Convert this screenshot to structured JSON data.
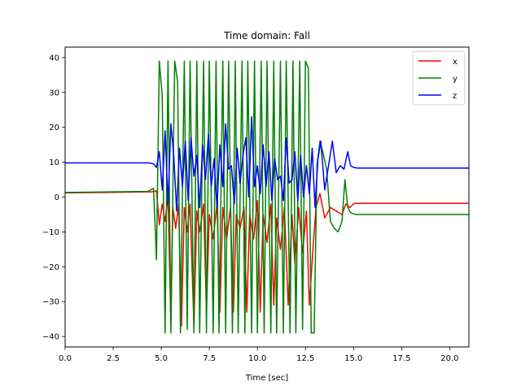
{
  "chart_data": {
    "type": "line",
    "title": "Time domain: Fall",
    "xlabel": "Time [sec]",
    "ylabel": "",
    "xlim": [
      0,
      21
    ],
    "ylim": [
      -43,
      43
    ],
    "xticks": [
      0.0,
      2.5,
      5.0,
      7.5,
      10.0,
      12.5,
      15.0,
      17.5,
      20.0
    ],
    "xtick_labels": [
      "0.0",
      "2.5",
      "5.0",
      "7.5",
      "10.0",
      "12.5",
      "15.0",
      "17.5",
      "20.0"
    ],
    "yticks": [
      40,
      30,
      20,
      10,
      0,
      -10,
      -20,
      -30,
      -40
    ],
    "ytick_labels": [
      "40",
      "30",
      "20",
      "10",
      "0",
      "−10",
      "−20",
      "−30",
      "−40"
    ],
    "grid": false,
    "legend_position": "top-right",
    "series": [
      {
        "name": "x",
        "color": "#ff0000",
        "x": [
          0,
          4.5,
          4.75,
          4.9,
          5.05,
          5.2,
          5.35,
          5.5,
          5.6,
          5.75,
          5.9,
          6.05,
          6.2,
          6.35,
          6.5,
          6.7,
          6.85,
          7.0,
          7.2,
          7.35,
          7.5,
          7.7,
          7.9,
          8.05,
          8.2,
          8.4,
          8.6,
          8.75,
          8.9,
          9.1,
          9.3,
          9.45,
          9.6,
          9.8,
          10.0,
          10.15,
          10.3,
          10.5,
          10.7,
          10.85,
          11.0,
          11.2,
          11.4,
          11.6,
          11.8,
          11.95,
          12.15,
          12.35,
          12.55,
          12.7,
          12.9,
          13.05,
          13.25,
          13.5,
          13.8,
          14.1,
          14.4,
          14.6,
          14.8,
          15.0,
          15.1,
          21
        ],
        "values": [
          1.2,
          1.5,
          1.8,
          -8,
          -2,
          -7,
          0,
          -36,
          -3,
          -9,
          -2,
          -37,
          -3,
          -10,
          -2,
          -37,
          -4,
          -10,
          -2,
          -33,
          -5,
          -12,
          -2,
          -33,
          -3,
          -12,
          -3,
          -33,
          -5,
          -9,
          -3,
          -33,
          -5,
          -12,
          -1,
          -33,
          -5,
          -13,
          -2,
          -31,
          -6,
          -15,
          -3,
          -31,
          -5,
          -19,
          -3,
          -16,
          -4,
          -31,
          -14,
          -3,
          1,
          -6,
          -3,
          -4,
          -5,
          -2,
          -3,
          -2,
          -1.8,
          -1.8
        ]
      },
      {
        "name": "y",
        "color": "#008000",
        "x": [
          0,
          4.3,
          4.6,
          4.75,
          4.9,
          5.05,
          5.2,
          5.35,
          5.5,
          5.7,
          5.85,
          6.0,
          6.2,
          6.35,
          6.5,
          6.7,
          6.85,
          7.0,
          7.2,
          7.35,
          7.5,
          7.7,
          7.85,
          8.0,
          8.2,
          8.35,
          8.5,
          8.7,
          8.85,
          9.0,
          9.2,
          9.35,
          9.5,
          9.7,
          9.85,
          10.0,
          10.2,
          10.35,
          10.5,
          10.7,
          10.85,
          11.0,
          11.2,
          11.35,
          11.5,
          11.7,
          11.85,
          12.0,
          12.2,
          12.35,
          12.5,
          12.65,
          12.8,
          12.95,
          13.1,
          13.25,
          13.4,
          13.6,
          13.8,
          14.0,
          14.2,
          14.4,
          14.55,
          14.7,
          14.85,
          15.0,
          15.15,
          21
        ],
        "values": [
          1.3,
          1.6,
          2.5,
          -18,
          39,
          29,
          -39,
          39,
          -39,
          39,
          33,
          -39,
          39,
          -38,
          39,
          -39,
          39,
          -39,
          39,
          -39,
          39,
          -39,
          39,
          -39,
          39,
          -39,
          39,
          -39,
          39,
          -39,
          39,
          -39,
          39,
          -39,
          39,
          -39,
          39,
          -39,
          39,
          -39,
          39,
          -39,
          39,
          -39,
          39,
          -39,
          39,
          -39,
          39,
          -38,
          39,
          37,
          -39,
          -39,
          9,
          16,
          13,
          8,
          -7,
          -9,
          -10,
          -7,
          5,
          -3,
          -4.5,
          -4.8,
          -5,
          -5
        ]
      },
      {
        "name": "z",
        "color": "#0000ff",
        "x": [
          0,
          4.4,
          4.6,
          4.75,
          4.9,
          5.05,
          5.2,
          5.35,
          5.5,
          5.65,
          5.8,
          5.95,
          6.1,
          6.25,
          6.4,
          6.55,
          6.7,
          6.85,
          7.0,
          7.15,
          7.3,
          7.45,
          7.6,
          7.75,
          7.9,
          8.05,
          8.2,
          8.35,
          8.5,
          8.65,
          8.8,
          8.95,
          9.1,
          9.25,
          9.4,
          9.55,
          9.7,
          9.85,
          10.0,
          10.15,
          10.3,
          10.45,
          10.6,
          10.75,
          10.9,
          11.05,
          11.2,
          11.35,
          11.5,
          11.65,
          11.8,
          11.95,
          12.1,
          12.25,
          12.4,
          12.55,
          12.7,
          12.85,
          13.0,
          13.15,
          13.3,
          13.5,
          13.7,
          13.9,
          14.1,
          14.3,
          14.5,
          14.7,
          14.85,
          15.0,
          15.2,
          21
        ],
        "values": [
          9.8,
          9.8,
          9.5,
          8.5,
          13,
          2,
          19,
          -2,
          21,
          12,
          -4,
          14,
          3,
          16,
          -1,
          17,
          6,
          12,
          -3,
          15,
          5,
          18,
          3,
          11,
          -3,
          15,
          3,
          21,
          8,
          9,
          -2,
          14,
          4,
          12,
          17,
          0,
          23,
          3,
          9,
          1,
          15,
          3,
          13,
          -1,
          11,
          5,
          6,
          -1,
          17,
          4,
          5,
          13,
          -1,
          12,
          0,
          9,
          1,
          14,
          -3,
          11,
          16,
          2,
          9,
          16,
          7,
          9,
          8,
          13,
          9,
          8.5,
          8.3,
          8.3
        ]
      }
    ]
  }
}
